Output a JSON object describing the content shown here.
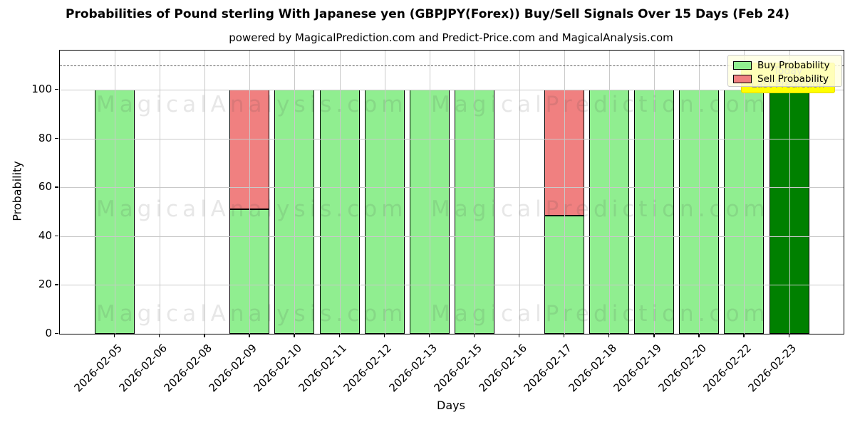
{
  "title": "Probabilities of Pound sterling With Japanese yen (GBPJPY(Forex)) Buy/Sell Signals Over 15 Days (Feb 24)",
  "subtitle": "powered by MagicalPrediction.com and Predict-Price.com and MagicalAnalysis.com",
  "axes": {
    "ylabel": "Probability",
    "xlabel": "Days",
    "yticks": [
      0,
      20,
      40,
      60,
      80,
      100
    ],
    "ylim": [
      0,
      116
    ],
    "dashed_line_y": 110
  },
  "legend": {
    "items": [
      {
        "label": "Buy Probability",
        "color": "#90ee90"
      },
      {
        "label": "Sell Probability",
        "color": "#f08080"
      }
    ]
  },
  "annotation": {
    "line1": "Today",
    "line2": "Last Prediction",
    "bg_color": "#ffff00",
    "text_color": "#8a8a8a"
  },
  "watermarks": {
    "left_text": "MagicalAnalysis.com",
    "right_text": "MagicalPrediction.com"
  },
  "chart_data": {
    "type": "bar",
    "stacked": true,
    "title": "Probabilities of Pound sterling With Japanese yen (GBPJPY(Forex)) Buy/Sell Signals Over 15 Days (Feb 24)",
    "xlabel": "Days",
    "ylabel": "Probability",
    "ylim": [
      0,
      116
    ],
    "grid": true,
    "legend_position": "upper right",
    "dashed_line_y": 110,
    "categories": [
      "2026-02-05",
      "2026-02-06",
      "2026-02-08",
      "2026-02-09",
      "2026-02-10",
      "2026-02-11",
      "2026-02-12",
      "2026-02-13",
      "2026-02-15",
      "2026-02-16",
      "2026-02-17",
      "2026-02-18",
      "2026-02-19",
      "2026-02-20",
      "2026-02-22",
      "2026-02-23"
    ],
    "series": [
      {
        "name": "Buy Probability",
        "color": "#90ee90",
        "values": [
          100,
          0,
          0,
          51,
          100,
          100,
          100,
          100,
          100,
          0,
          48.5,
          100,
          100,
          100,
          100,
          100
        ]
      },
      {
        "name": "Sell Probability",
        "color": "#f08080",
        "values": [
          0,
          0,
          0,
          49,
          0,
          0,
          0,
          0,
          0,
          0,
          51.5,
          0,
          0,
          0,
          0,
          0
        ]
      }
    ],
    "today_index": 15,
    "today_buy_color": "#008000"
  }
}
